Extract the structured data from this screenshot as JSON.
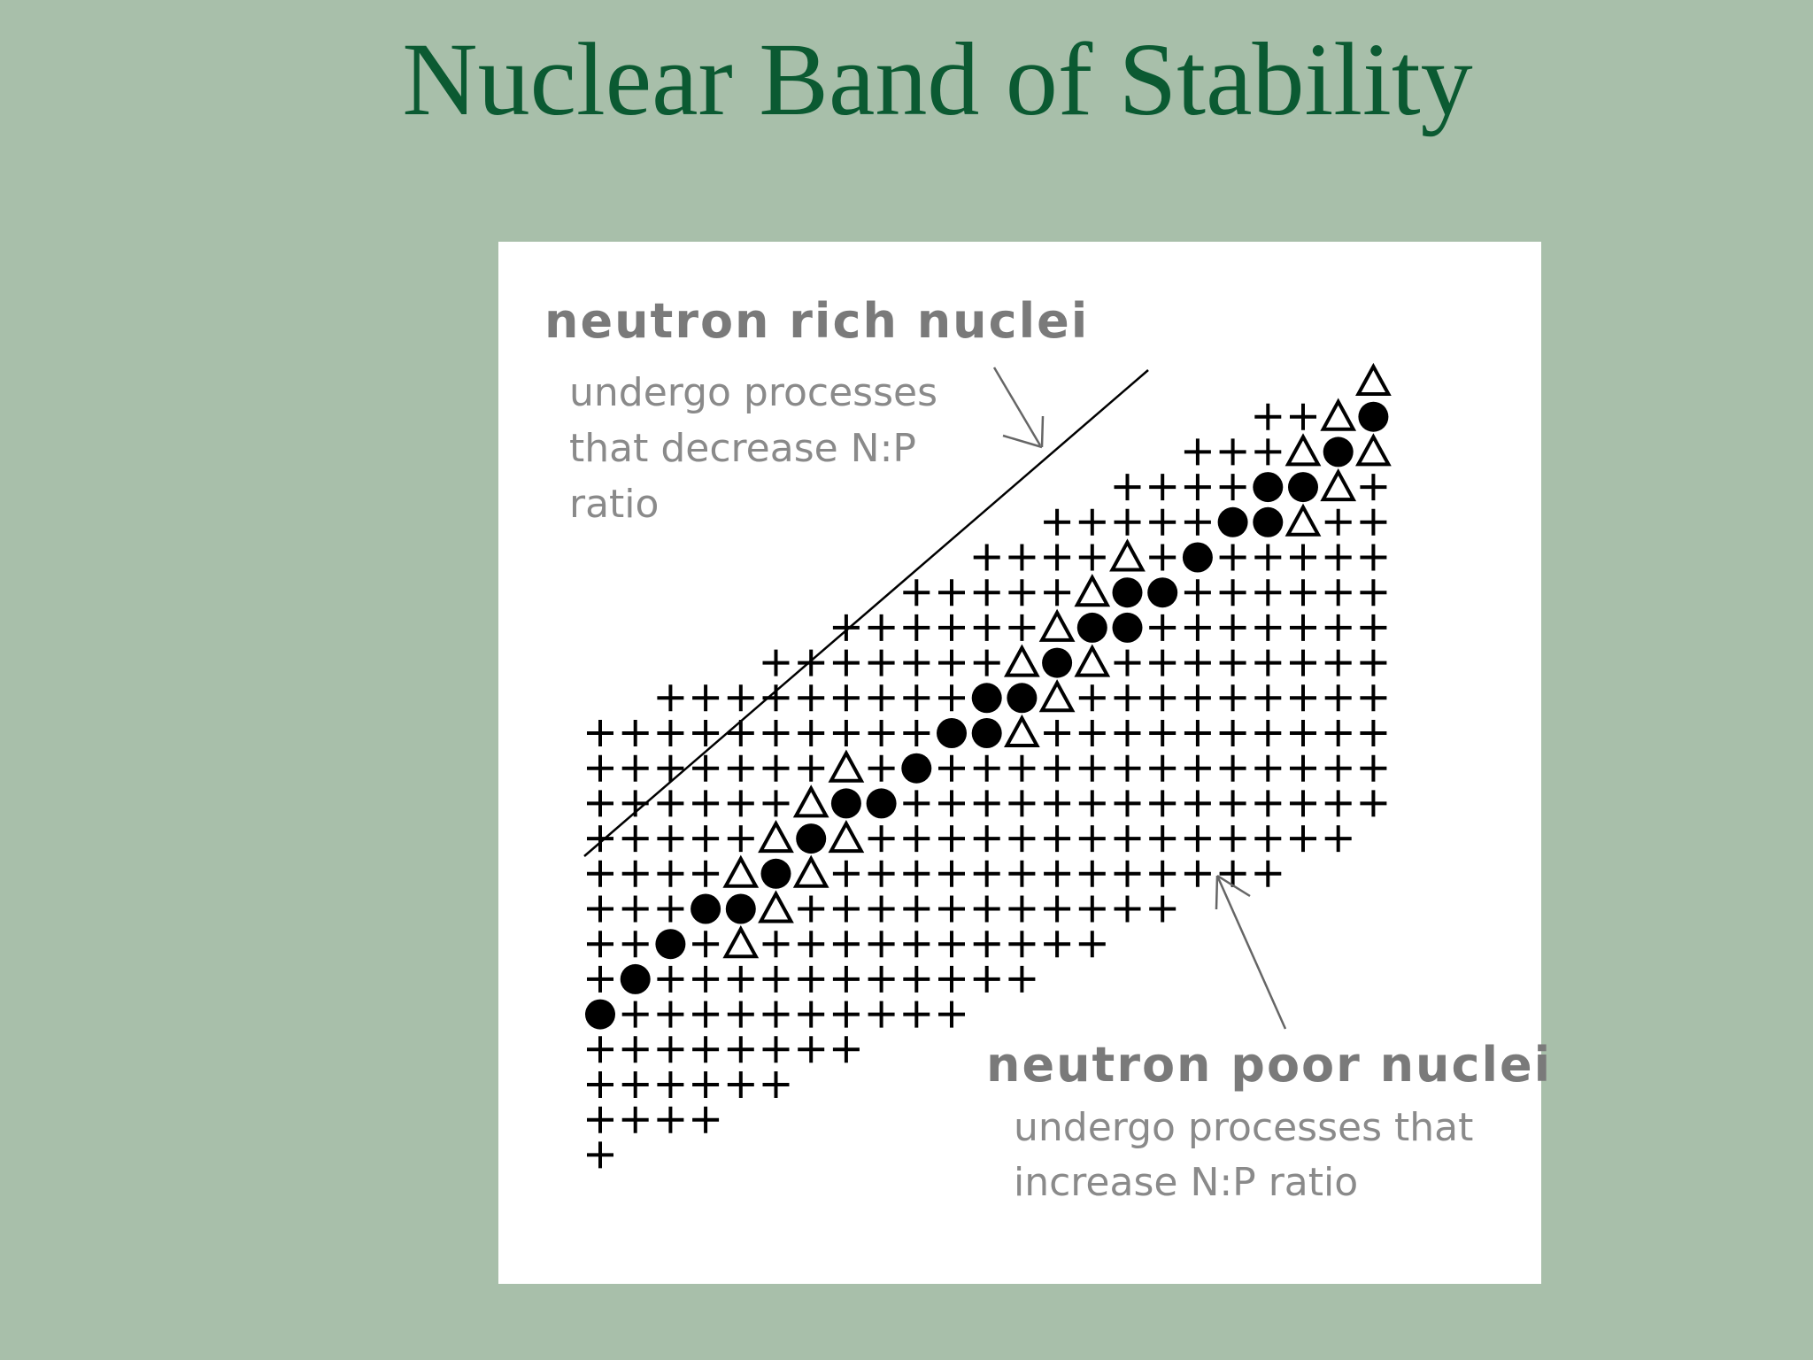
{
  "title": "Nuclear Band of Stability",
  "diagram": {
    "neutron_rich": {
      "label": "neutron rich nuclei",
      "lines": [
        "undergo processes",
        "that decrease N:P",
        "ratio"
      ]
    },
    "neutron_poor": {
      "label": "neutron poor nuclei",
      "lines": [
        "undergo processes that",
        "increase N:P ratio"
      ]
    }
  }
}
